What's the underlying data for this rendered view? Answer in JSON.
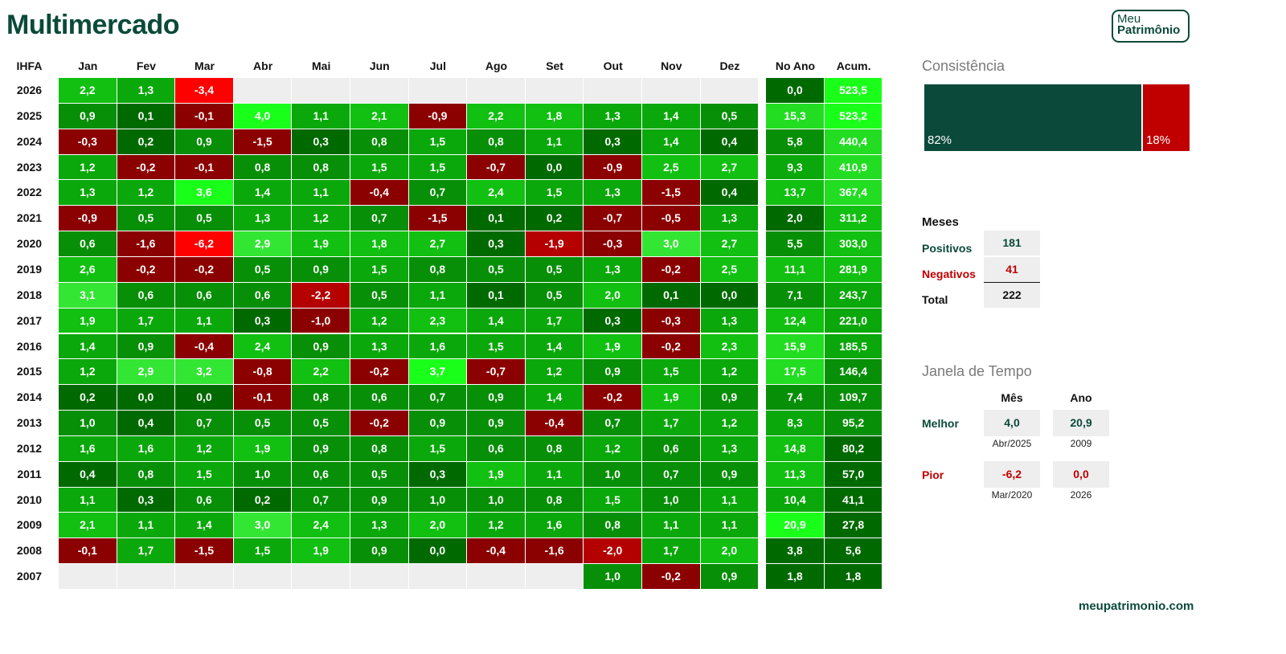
{
  "title": "Multimercado",
  "logo": {
    "line1": "Meu",
    "line2": "Patrimônio"
  },
  "colors": {
    "dark_green": "#0b4a3a",
    "red": "#c00000",
    "empty": "#eeeeee"
  },
  "chart_data": {
    "type": "heatmap",
    "corner_label": "IHFA",
    "columns": [
      "Jan",
      "Fev",
      "Mar",
      "Abr",
      "Mai",
      "Jun",
      "Jul",
      "Ago",
      "Set",
      "Out",
      "Nov",
      "Dez",
      "No Ano",
      "Acum."
    ],
    "rows": [
      {
        "year": "2026",
        "values": [
          "2,2",
          "1,3",
          "-3,4",
          null,
          null,
          null,
          null,
          null,
          null,
          null,
          null,
          null,
          "0,0",
          "523,5"
        ]
      },
      {
        "year": "2025",
        "values": [
          "0,9",
          "0,1",
          "-0,1",
          "4,0",
          "1,1",
          "2,1",
          "-0,9",
          "2,2",
          "1,8",
          "1,3",
          "1,4",
          "0,5",
          "15,3",
          "523,2"
        ]
      },
      {
        "year": "2024",
        "values": [
          "-0,3",
          "0,2",
          "0,9",
          "-1,5",
          "0,3",
          "0,8",
          "1,5",
          "0,8",
          "1,1",
          "0,3",
          "1,4",
          "0,4",
          "5,8",
          "440,4"
        ]
      },
      {
        "year": "2023",
        "values": [
          "1,2",
          "-0,2",
          "-0,1",
          "0,8",
          "0,8",
          "1,5",
          "1,5",
          "-0,7",
          "0,0",
          "-0,9",
          "2,5",
          "2,7",
          "9,3",
          "410,9"
        ]
      },
      {
        "year": "2022",
        "values": [
          "1,3",
          "1,2",
          "3,6",
          "1,4",
          "1,1",
          "-0,4",
          "0,7",
          "2,4",
          "1,5",
          "1,3",
          "-1,5",
          "0,4",
          "13,7",
          "367,4"
        ]
      },
      {
        "year": "2021",
        "values": [
          "-0,9",
          "0,5",
          "0,5",
          "1,3",
          "1,2",
          "0,7",
          "-1,5",
          "0,1",
          "0,2",
          "-0,7",
          "-0,5",
          "1,3",
          "2,0",
          "311,2"
        ]
      },
      {
        "year": "2020",
        "values": [
          "0,6",
          "-1,6",
          "-6,2",
          "2,9",
          "1,9",
          "1,8",
          "2,7",
          "0,3",
          "-1,9",
          "-0,3",
          "3,0",
          "2,7",
          "5,5",
          "303,0"
        ]
      },
      {
        "year": "2019",
        "values": [
          "2,6",
          "-0,2",
          "-0,2",
          "0,5",
          "0,9",
          "1,5",
          "0,8",
          "0,5",
          "0,5",
          "1,3",
          "-0,2",
          "2,5",
          "11,1",
          "281,9"
        ]
      },
      {
        "year": "2018",
        "values": [
          "3,1",
          "0,6",
          "0,6",
          "0,6",
          "-2,2",
          "0,5",
          "1,1",
          "0,1",
          "0,5",
          "2,0",
          "0,1",
          "0,0",
          "7,1",
          "243,7"
        ]
      },
      {
        "year": "2017",
        "values": [
          "1,9",
          "1,7",
          "1,1",
          "0,3",
          "-1,0",
          "1,2",
          "2,3",
          "1,4",
          "1,7",
          "0,3",
          "-0,3",
          "1,3",
          "12,4",
          "221,0"
        ]
      },
      {
        "year": "2016",
        "values": [
          "1,4",
          "0,9",
          "-0,4",
          "2,4",
          "0,9",
          "1,3",
          "1,6",
          "1,5",
          "1,4",
          "1,9",
          "-0,2",
          "2,3",
          "15,9",
          "185,5"
        ]
      },
      {
        "year": "2015",
        "values": [
          "1,2",
          "2,9",
          "3,2",
          "-0,8",
          "2,2",
          "-0,2",
          "3,7",
          "-0,7",
          "1,2",
          "0,9",
          "1,5",
          "1,2",
          "17,5",
          "146,4"
        ]
      },
      {
        "year": "2014",
        "values": [
          "0,2",
          "0,0",
          "0,0",
          "-0,1",
          "0,8",
          "0,6",
          "0,7",
          "0,9",
          "1,4",
          "-0,2",
          "1,9",
          "0,9",
          "7,4",
          "109,7"
        ]
      },
      {
        "year": "2013",
        "values": [
          "1,0",
          "0,4",
          "0,7",
          "0,5",
          "0,5",
          "-0,2",
          "0,9",
          "0,9",
          "-0,4",
          "0,7",
          "1,7",
          "1,2",
          "8,3",
          "95,2"
        ]
      },
      {
        "year": "2012",
        "values": [
          "1,6",
          "1,6",
          "1,2",
          "1,9",
          "0,9",
          "0,8",
          "1,5",
          "0,6",
          "0,8",
          "1,2",
          "0,6",
          "1,3",
          "14,8",
          "80,2"
        ]
      },
      {
        "year": "2011",
        "values": [
          "0,4",
          "0,8",
          "1,5",
          "1,0",
          "0,6",
          "0,5",
          "0,3",
          "1,9",
          "1,1",
          "1,0",
          "0,7",
          "0,9",
          "11,3",
          "57,0"
        ]
      },
      {
        "year": "2010",
        "values": [
          "1,1",
          "0,3",
          "0,6",
          "0,2",
          "0,7",
          "0,9",
          "1,0",
          "1,0",
          "0,8",
          "1,5",
          "1,0",
          "1,1",
          "10,4",
          "41,1"
        ]
      },
      {
        "year": "2009",
        "values": [
          "2,1",
          "1,1",
          "1,4",
          "3,0",
          "2,4",
          "1,3",
          "2,0",
          "1,2",
          "1,6",
          "0,8",
          "1,1",
          "1,1",
          "20,9",
          "27,8"
        ]
      },
      {
        "year": "2008",
        "values": [
          "-0,1",
          "1,7",
          "-1,5",
          "1,5",
          "1,9",
          "0,9",
          "0,0",
          "-0,4",
          "-1,6",
          "-2,0",
          "1,7",
          "2,0",
          "3,8",
          "5,6"
        ]
      },
      {
        "year": "2007",
        "values": [
          null,
          null,
          null,
          null,
          null,
          null,
          null,
          null,
          null,
          "1,0",
          "-0,2",
          "0,9",
          "1,8",
          "1,8"
        ]
      }
    ]
  },
  "consistencia": {
    "title": "Consistência",
    "positive_pct": 82,
    "negative_pct": 18,
    "positive_label": "82%",
    "negative_label": "18%"
  },
  "meses": {
    "title": "Meses",
    "positivos_label": "Positivos",
    "positivos_value": "181",
    "negativos_label": "Negativos",
    "negativos_value": "41",
    "total_label": "Total",
    "total_value": "222"
  },
  "janela": {
    "title": "Janela de Tempo",
    "mes_header": "Mês",
    "ano_header": "Ano",
    "melhor_label": "Melhor",
    "melhor_mes": "4,0",
    "melhor_mes_date": "Abr/2025",
    "melhor_ano": "20,9",
    "melhor_ano_date": "2009",
    "pior_label": "Pior",
    "pior_mes": "-6,2",
    "pior_mes_date": "Mar/2020",
    "pior_ano": "0,0",
    "pior_ano_date": "2026"
  },
  "footer": "meupatrimonio.com"
}
